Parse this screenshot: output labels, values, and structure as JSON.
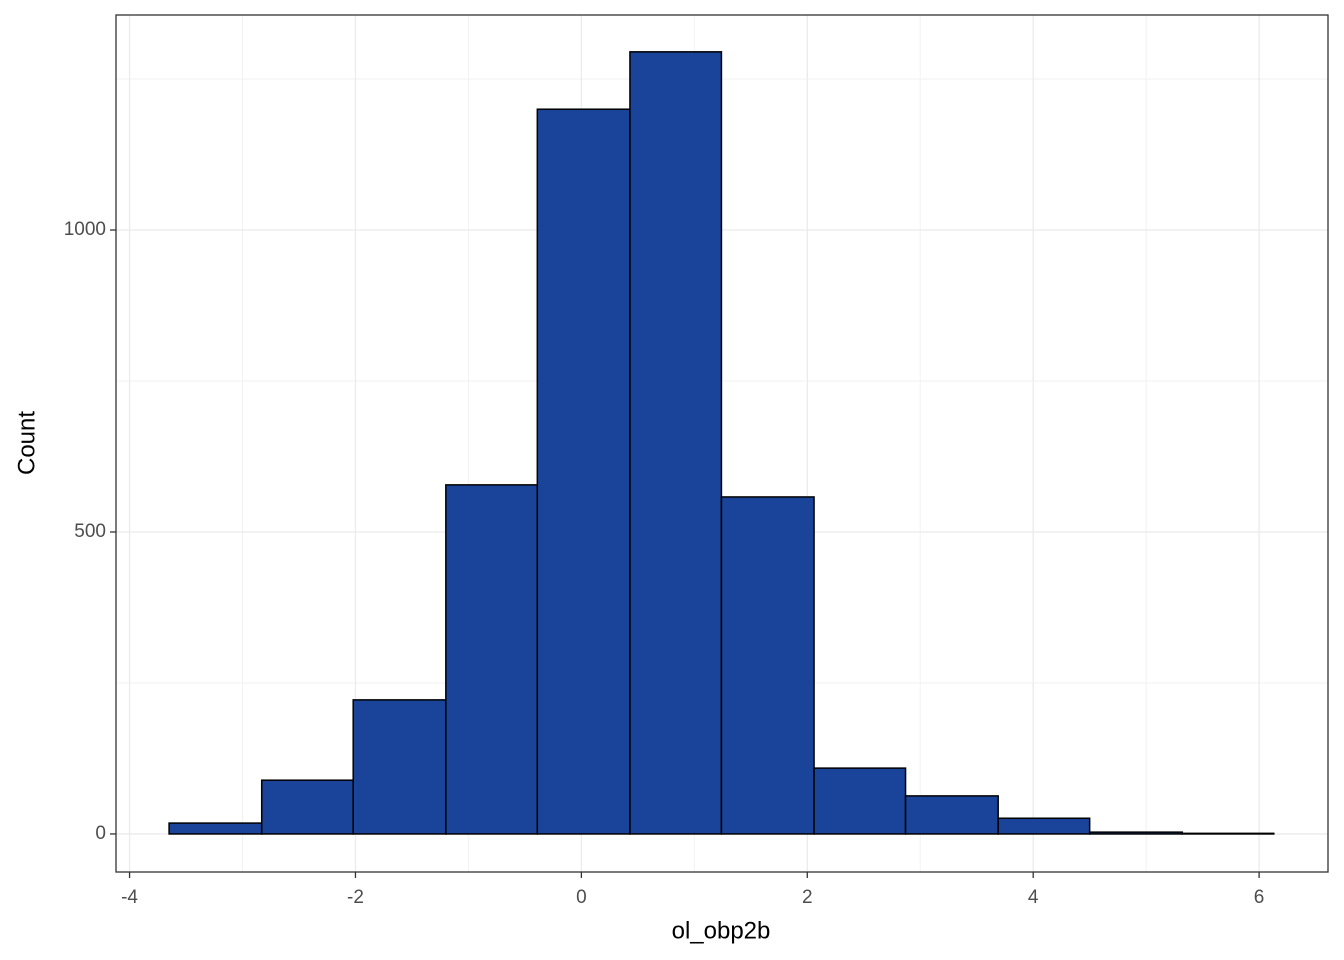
{
  "chart_data": {
    "type": "histogram",
    "x_label": "ol_obp2b",
    "y_label": "Count",
    "bins": [
      -3.65,
      -2.83,
      -2.02,
      -1.2,
      -0.39,
      0.43,
      1.24,
      2.06,
      2.87,
      3.69,
      4.5,
      5.32,
      6.13
    ],
    "values": [
      18,
      89,
      222,
      578,
      1200,
      1295,
      558,
      109,
      63,
      26,
      3,
      1
    ],
    "color": "#1a4499",
    "edge_color": "#000000",
    "xlim": [
      -4.12,
      6.61
    ],
    "ylim": [
      -63,
      1356
    ],
    "xticks": [
      -4,
      -2,
      0,
      2,
      4,
      6
    ],
    "yticks": [
      0,
      500,
      1000
    ],
    "grid": true
  }
}
